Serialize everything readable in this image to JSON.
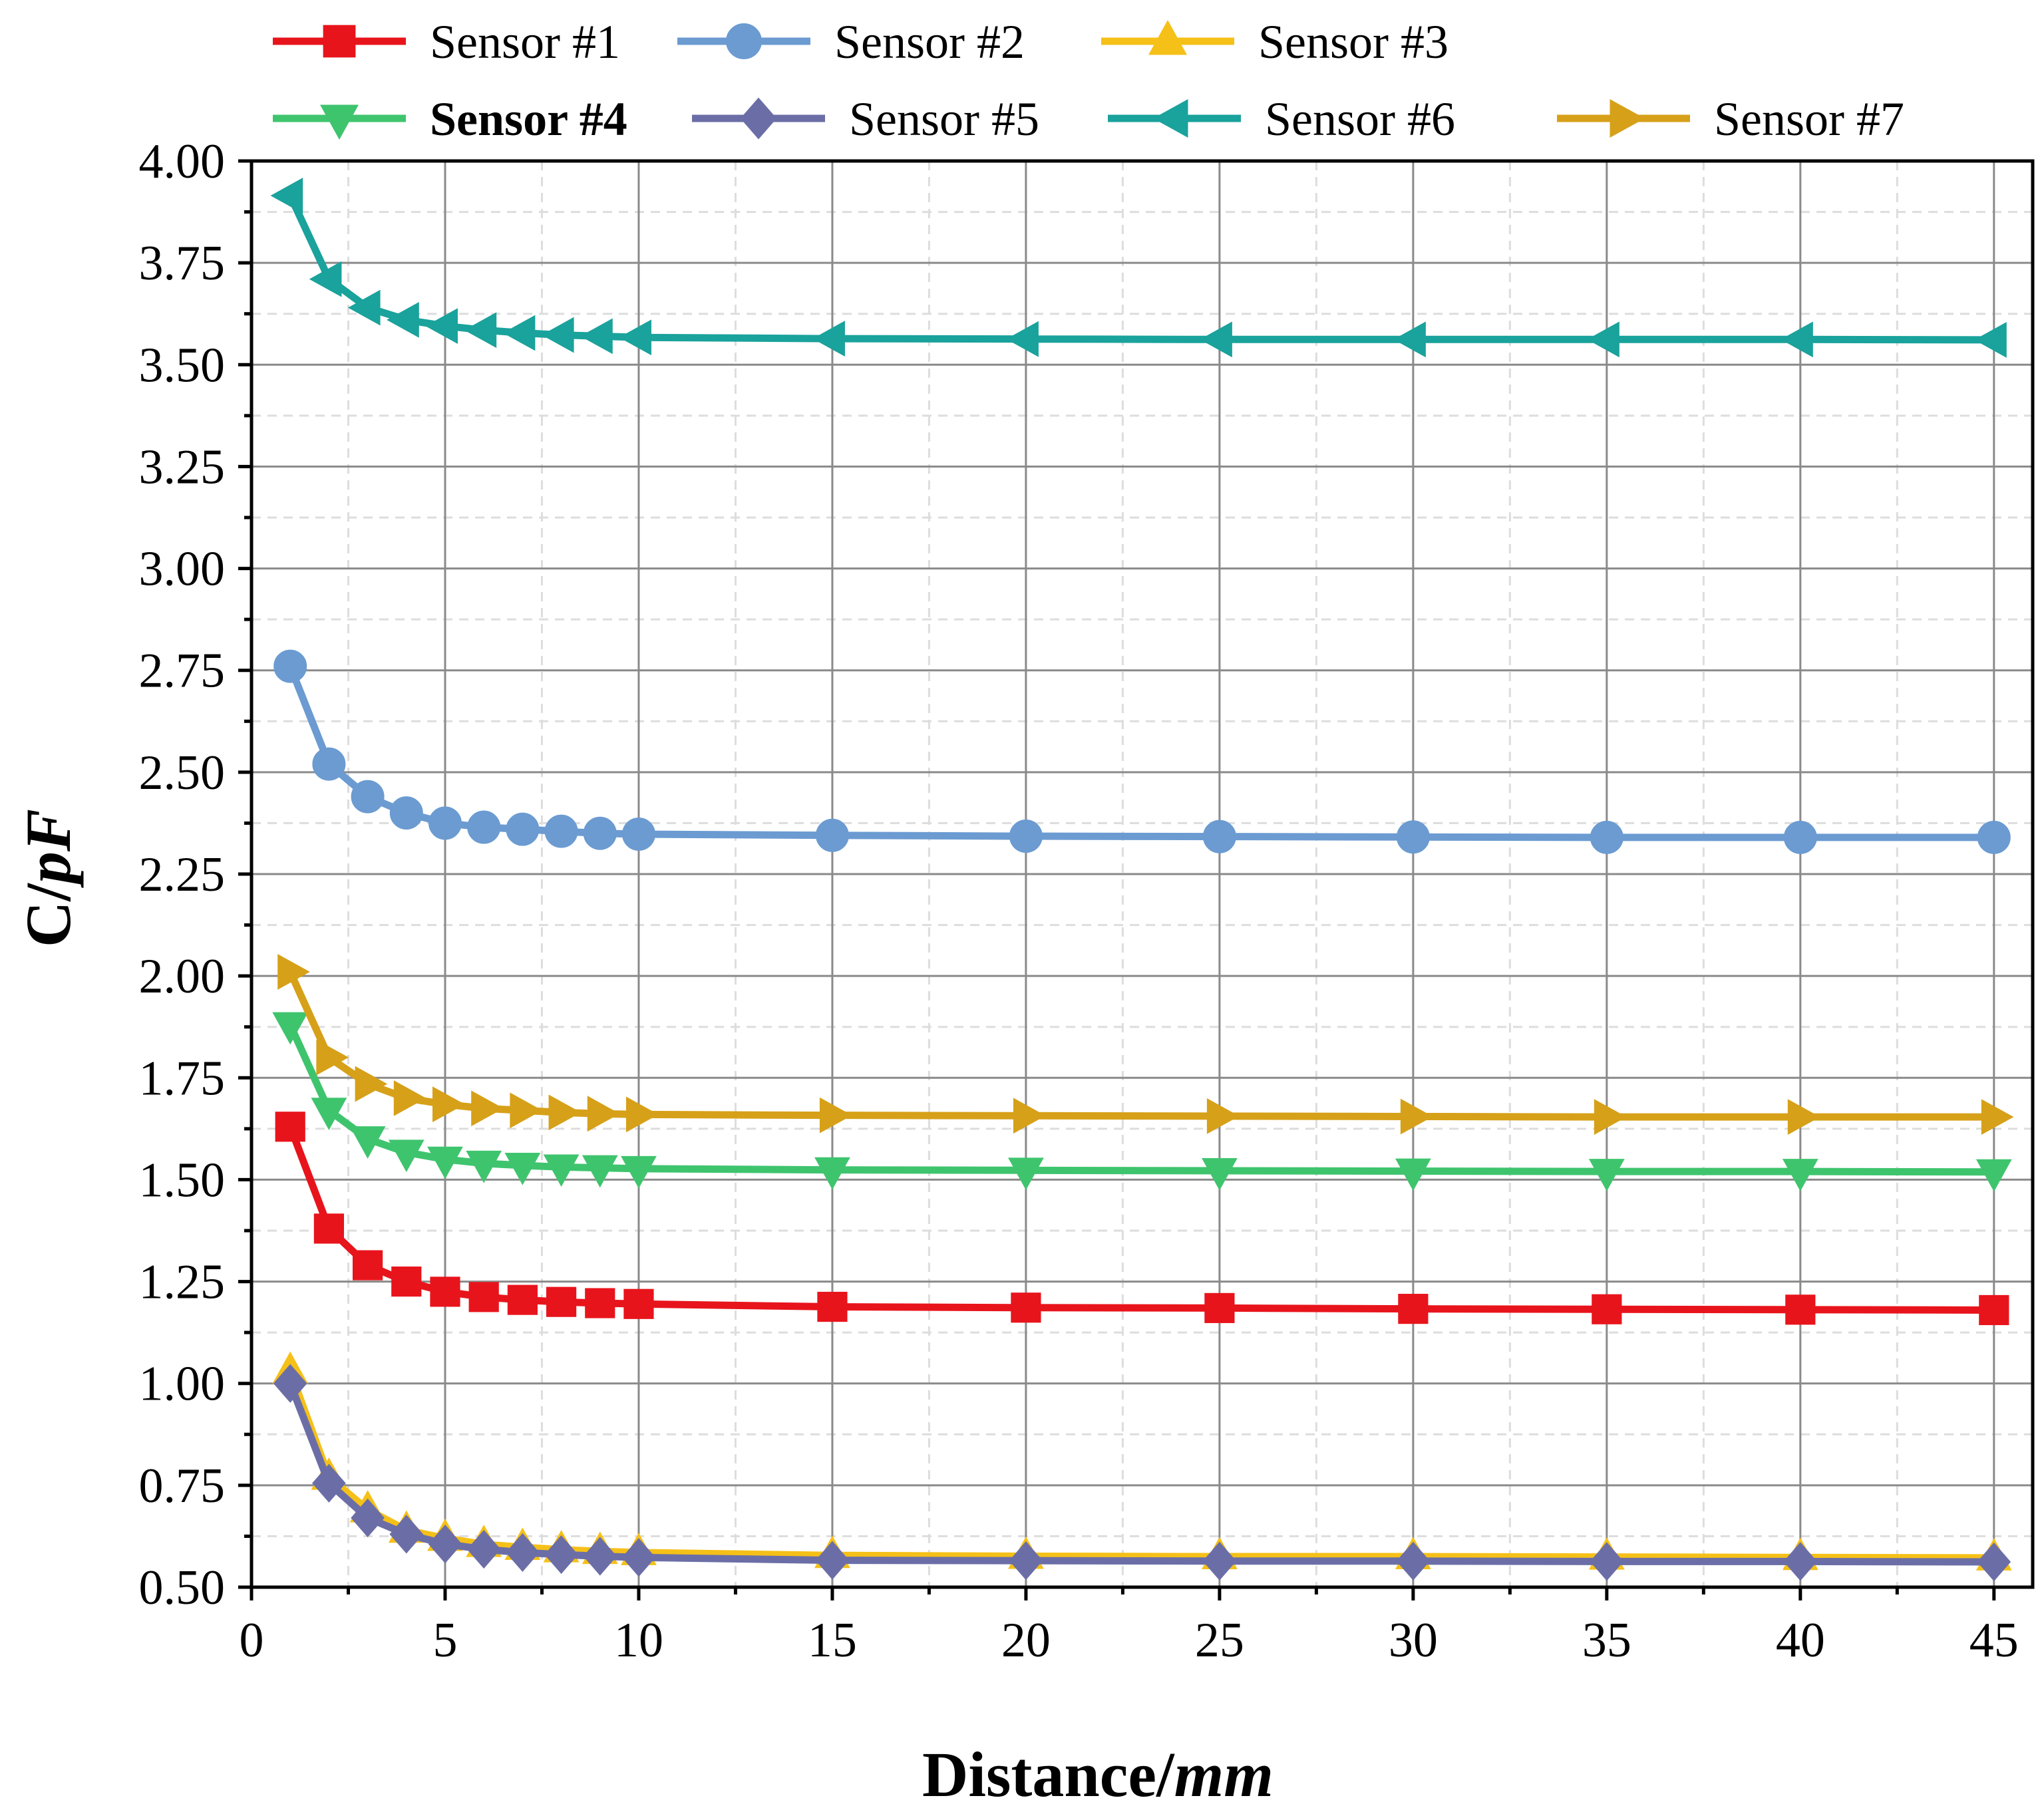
{
  "chart_data": {
    "type": "line",
    "title": "",
    "xlabel": "Distance/",
    "xlabel_italic": "mm",
    "ylabel": "C/",
    "ylabel_italic": "pF",
    "xlim": [
      0,
      46
    ],
    "ylim": [
      0.5,
      4.0
    ],
    "x_ticks": [
      0,
      5,
      10,
      15,
      20,
      25,
      30,
      35,
      40,
      45
    ],
    "x_tick_labels": [
      "0",
      "5",
      "10",
      "15",
      "20",
      "25",
      "30",
      "35",
      "40",
      "45"
    ],
    "y_ticks": [
      0.5,
      0.75,
      1.0,
      1.25,
      1.5,
      1.75,
      2.0,
      2.25,
      2.5,
      2.75,
      3.0,
      3.25,
      3.5,
      3.75,
      4.0
    ],
    "y_tick_labels": [
      "0.50",
      "0.75",
      "1.00",
      "1.25",
      "1.50",
      "1.75",
      "2.00",
      "2.25",
      "2.50",
      "2.75",
      "3.00",
      "3.25",
      "3.50",
      "3.75",
      "4.00"
    ],
    "grid": true,
    "legend_position": "top",
    "x": [
      1,
      2,
      3,
      4,
      5,
      6,
      7,
      8,
      9,
      10,
      15,
      20,
      25,
      30,
      35,
      40,
      45
    ],
    "series": [
      {
        "name": "Sensor #1",
        "color": "#e8141c",
        "marker": "square",
        "bold": false,
        "values": [
          1.63,
          1.38,
          1.29,
          1.25,
          1.225,
          1.212,
          1.205,
          1.2,
          1.197,
          1.195,
          1.188,
          1.186,
          1.185,
          1.183,
          1.182,
          1.181,
          1.18
        ]
      },
      {
        "name": "Sensor #2",
        "color": "#6b9bd1",
        "marker": "circle",
        "bold": false,
        "values": [
          2.76,
          2.52,
          2.44,
          2.4,
          2.375,
          2.365,
          2.36,
          2.355,
          2.35,
          2.348,
          2.345,
          2.343,
          2.342,
          2.341,
          2.34,
          2.34,
          2.34
        ]
      },
      {
        "name": "Sensor #3",
        "color": "#f5c018",
        "marker": "triangle-up",
        "bold": false,
        "values": [
          1.03,
          0.77,
          0.69,
          0.64,
          0.62,
          0.605,
          0.598,
          0.592,
          0.588,
          0.585,
          0.578,
          0.576,
          0.575,
          0.575,
          0.574,
          0.573,
          0.572
        ]
      },
      {
        "name": "Sensor #4",
        "color": "#3fc46e",
        "marker": "triangle-down",
        "bold": true,
        "values": [
          1.88,
          1.67,
          1.6,
          1.567,
          1.55,
          1.54,
          1.535,
          1.531,
          1.529,
          1.527,
          1.524,
          1.523,
          1.522,
          1.521,
          1.52,
          1.52,
          1.519
        ]
      },
      {
        "name": "Sensor #5",
        "color": "#6b6ea6",
        "marker": "diamond",
        "bold": false,
        "values": [
          1.0,
          0.755,
          0.67,
          0.63,
          0.606,
          0.593,
          0.585,
          0.58,
          0.576,
          0.573,
          0.566,
          0.565,
          0.564,
          0.564,
          0.563,
          0.563,
          0.562
        ]
      },
      {
        "name": "Sensor #6",
        "color": "#1aa29c",
        "marker": "triangle-left",
        "bold": false,
        "values": [
          3.915,
          3.71,
          3.64,
          3.61,
          3.595,
          3.585,
          3.578,
          3.573,
          3.57,
          3.567,
          3.564,
          3.563,
          3.562,
          3.562,
          3.562,
          3.562,
          3.561
        ]
      },
      {
        "name": "Sensor #7",
        "color": "#d6a019",
        "marker": "triangle-right",
        "bold": false,
        "values": [
          2.01,
          1.8,
          1.735,
          1.7,
          1.685,
          1.675,
          1.67,
          1.665,
          1.662,
          1.66,
          1.658,
          1.657,
          1.656,
          1.655,
          1.654,
          1.654,
          1.654
        ]
      }
    ]
  }
}
